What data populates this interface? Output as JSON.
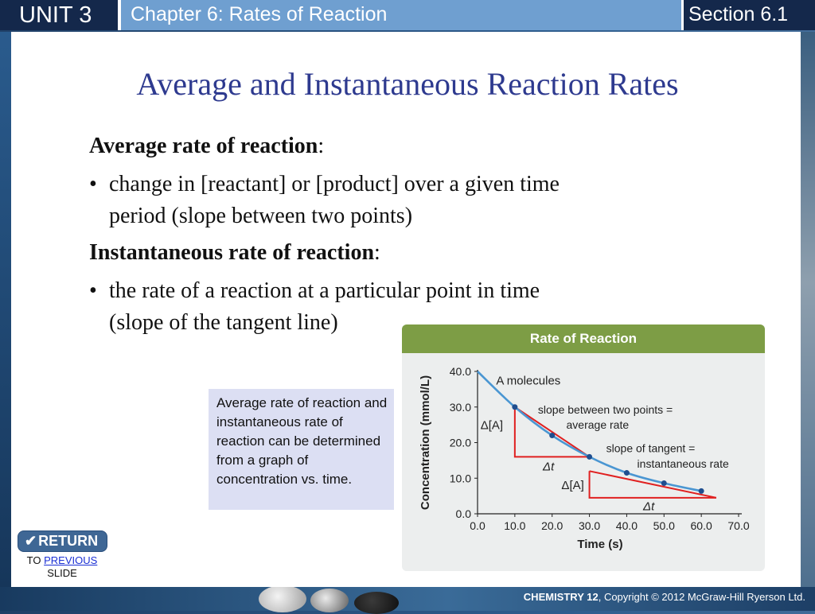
{
  "header": {
    "unit": "UNIT 3",
    "chapter": "Chapter 6: Rates of Reaction",
    "section": "Section 6.1"
  },
  "title": "Average and Instantaneous Reaction Rates",
  "content": {
    "avg_term": "Average rate of reaction",
    "avg_colon": ":",
    "avg_bullet_line1": "change in [reactant] or [product] over a given time",
    "avg_bullet_line2": "period (slope between two points)",
    "inst_term": "Instantaneous rate of reaction",
    "inst_colon": ":",
    "inst_bullet_line1": "the rate of a reaction at a particular point in time",
    "inst_bullet_line2": "(slope of the tangent line)",
    "bullet_symbol": "•"
  },
  "callout": {
    "text": "Average rate of reaction and instantaneous rate of reaction can be determined from a graph of concentration vs. time."
  },
  "return_button": {
    "label": "RETURN",
    "to_text": "TO",
    "previous_link": "PREVIOUS",
    "slide_text": "SLIDE"
  },
  "footer": {
    "course": "CHEMISTRY 12",
    "copyright": ", Copyright © 2012 McGraw-Hill Ryerson Ltd."
  },
  "chart_data": {
    "type": "line",
    "title": "Rate of Reaction",
    "xlabel": "Time (s)",
    "ylabel": "Concentration (mmol/L)",
    "xlim": [
      0,
      70
    ],
    "ylim": [
      0,
      40
    ],
    "x_ticks": [
      "0.0",
      "10.0",
      "20.0",
      "30.0",
      "40.0",
      "50.0",
      "60.0",
      "70.0"
    ],
    "y_ticks": [
      "0.0",
      "10.0",
      "20.0",
      "30.0",
      "40.0"
    ],
    "series": [
      {
        "name": "A molecules",
        "x": [
          0,
          10,
          20,
          30,
          40,
          50,
          60
        ],
        "y": [
          40.0,
          30.0,
          22.0,
          16.0,
          11.5,
          8.6,
          6.4
        ]
      }
    ],
    "secant": {
      "x1": 10,
      "y1": 30.0,
      "x2": 30,
      "y2": 16.0
    },
    "tangent": {
      "x1": 30,
      "y1": 12.0,
      "x2": 64,
      "y2": 4.5
    },
    "tangent_point": {
      "x": 40,
      "y": 11.5
    },
    "annotations": {
      "delta_a_1": "Δ[A]",
      "delta_t_1": "Δt",
      "delta_a_2": "Δ[A]",
      "delta_t_2": "Δt",
      "secant_label_1": "slope between two points =",
      "secant_label_2": "average rate",
      "tangent_label_1": "slope of tangent =",
      "tangent_label_2": "instantaneous rate"
    },
    "colors": {
      "curve": "#4a96d2",
      "marker": "#1f4e8f",
      "triangle": "#e02020",
      "header": "#7d9d45"
    }
  }
}
